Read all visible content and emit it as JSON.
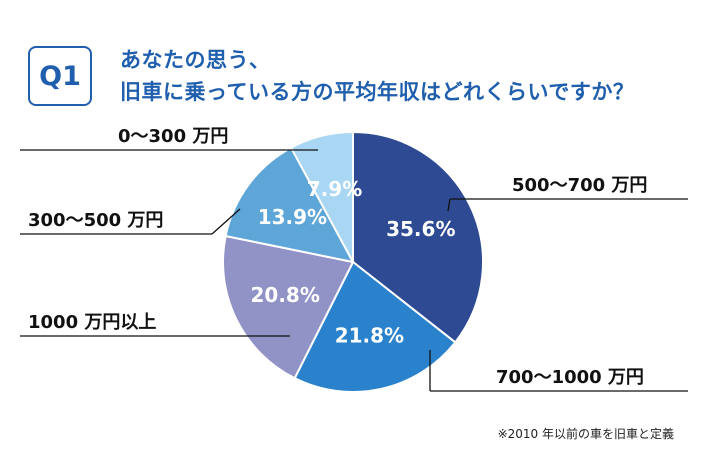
{
  "question": {
    "badge": "Q1",
    "title_line1": "あなたの思う、",
    "title_line2": "旧車に乗っている方の平均年収はどれくらいですか？"
  },
  "footnote": "※2010 年以前の車を旧車と定義",
  "chart_data": {
    "type": "pie",
    "start": "12 o'clock",
    "direction": "clockwise",
    "slices": [
      {
        "label": "500〜700 万円",
        "value": 35.6,
        "value_label": "35.6%",
        "color": "#2e4a93",
        "label_side": "right"
      },
      {
        "label": "700〜1000 万円",
        "value": 21.8,
        "value_label": "21.8%",
        "color": "#2a82cc",
        "label_side": "right"
      },
      {
        "label": "1000 万円以上",
        "value": 20.8,
        "value_label": "20.8%",
        "color": "#9193c6",
        "label_side": "left"
      },
      {
        "label": "300〜500 万円",
        "value": 13.9,
        "value_label": "13.9%",
        "color": "#5fa6d8",
        "label_side": "left"
      },
      {
        "label": "0〜300 万円",
        "value": 7.9,
        "value_label": "7.9%",
        "color": "#a8d6f3",
        "label_side": "left"
      }
    ]
  }
}
